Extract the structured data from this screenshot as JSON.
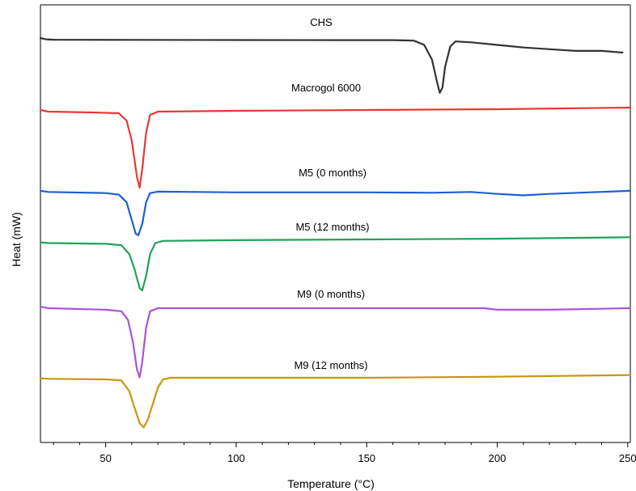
{
  "chart_data": {
    "type": "line",
    "title": "",
    "xlabel": "Temperature (°C)",
    "ylabel": "Heat (mW)",
    "xlim": [
      25,
      251
    ],
    "x_ticks": [
      50,
      100,
      150,
      200,
      250
    ],
    "y_ticks_shown": false,
    "grid": false,
    "legend": "inline labels above each curve",
    "series": [
      {
        "name": "CHS",
        "color": "#333333",
        "points": [
          [
            25,
            0.0
          ],
          [
            27,
            -0.15
          ],
          [
            30,
            -0.2
          ],
          [
            60,
            -0.22
          ],
          [
            100,
            -0.24
          ],
          [
            140,
            -0.25
          ],
          [
            160,
            -0.25
          ],
          [
            168,
            -0.3
          ],
          [
            172,
            -0.8
          ],
          [
            175,
            -2.5
          ],
          [
            177,
            -5.2
          ],
          [
            178,
            -6.4
          ],
          [
            179,
            -5.8
          ],
          [
            180,
            -3.4
          ],
          [
            182,
            -1.0
          ],
          [
            184,
            -0.4
          ],
          [
            190,
            -0.5
          ],
          [
            200,
            -0.8
          ],
          [
            210,
            -1.1
          ],
          [
            220,
            -1.3
          ],
          [
            230,
            -1.5
          ],
          [
            240,
            -1.5
          ],
          [
            248,
            -1.7
          ]
        ]
      },
      {
        "name": "Macrogol 6000",
        "color": "#e53935",
        "points": [
          [
            25,
            -0.2
          ],
          [
            28,
            -0.4
          ],
          [
            45,
            -0.5
          ],
          [
            55,
            -0.6
          ],
          [
            58,
            -1.5
          ],
          [
            60,
            -4.0
          ],
          [
            62,
            -8.5
          ],
          [
            63,
            -9.8
          ],
          [
            64,
            -7.5
          ],
          [
            65.5,
            -3.0
          ],
          [
            67,
            -0.8
          ],
          [
            70,
            -0.4
          ],
          [
            100,
            -0.3
          ],
          [
            150,
            -0.2
          ],
          [
            200,
            -0.1
          ],
          [
            251,
            0.1
          ]
        ]
      },
      {
        "name": "M5 (0 months)",
        "color": "#1e5fd6",
        "points": [
          [
            25,
            -0.1
          ],
          [
            28,
            -0.25
          ],
          [
            50,
            -0.4
          ],
          [
            55,
            -0.6
          ],
          [
            58,
            -1.6
          ],
          [
            60,
            -4.0
          ],
          [
            61.5,
            -5.8
          ],
          [
            62.5,
            -6.0
          ],
          [
            64,
            -4.5
          ],
          [
            65.5,
            -1.6
          ],
          [
            67,
            -0.4
          ],
          [
            70,
            -0.2
          ],
          [
            100,
            -0.3
          ],
          [
            150,
            -0.3
          ],
          [
            175,
            -0.35
          ],
          [
            190,
            -0.25
          ],
          [
            200,
            -0.5
          ],
          [
            210,
            -0.7
          ],
          [
            220,
            -0.5
          ],
          [
            235,
            -0.3
          ],
          [
            251,
            -0.1
          ]
        ]
      },
      {
        "name": "M5 (12 months)",
        "color": "#22a25a",
        "points": [
          [
            25,
            -0.4
          ],
          [
            28,
            -0.5
          ],
          [
            50,
            -0.6
          ],
          [
            56,
            -0.8
          ],
          [
            59,
            -2.0
          ],
          [
            61,
            -4.0
          ],
          [
            63,
            -6.7
          ],
          [
            64,
            -7.0
          ],
          [
            65.5,
            -5.0
          ],
          [
            67,
            -2.0
          ],
          [
            69,
            -0.5
          ],
          [
            72,
            -0.2
          ],
          [
            100,
            -0.1
          ],
          [
            150,
            0.0
          ],
          [
            200,
            0.1
          ],
          [
            251,
            0.3
          ]
        ]
      },
      {
        "name": "M9 (0 months)",
        "color": "#a855d6",
        "points": [
          [
            25,
            0.2
          ],
          [
            28,
            0.0
          ],
          [
            50,
            -0.2
          ],
          [
            56,
            -0.4
          ],
          [
            58.5,
            -1.5
          ],
          [
            60.5,
            -4.5
          ],
          [
            62,
            -8.0
          ],
          [
            63,
            -9.0
          ],
          [
            64,
            -7.0
          ],
          [
            65.5,
            -2.5
          ],
          [
            67,
            -0.4
          ],
          [
            70,
            0.0
          ],
          [
            100,
            0.0
          ],
          [
            150,
            0.0
          ],
          [
            195,
            0.0
          ],
          [
            200,
            -0.2
          ],
          [
            220,
            -0.2
          ],
          [
            251,
            0.0
          ]
        ]
      },
      {
        "name": "M9 (12 months)",
        "color": "#c9960c",
        "points": [
          [
            25,
            -0.1
          ],
          [
            28,
            -0.2
          ],
          [
            50,
            -0.3
          ],
          [
            56,
            -0.5
          ],
          [
            59,
            -2.5
          ],
          [
            61,
            -5.5
          ],
          [
            63,
            -8.5
          ],
          [
            64.5,
            -9.3
          ],
          [
            66,
            -8.0
          ],
          [
            68,
            -5.0
          ],
          [
            70,
            -1.8
          ],
          [
            72,
            -0.3
          ],
          [
            75,
            0.0
          ],
          [
            100,
            0.0
          ],
          [
            150,
            0.0
          ],
          [
            200,
            0.2
          ],
          [
            251,
            0.5
          ]
        ]
      }
    ]
  }
}
